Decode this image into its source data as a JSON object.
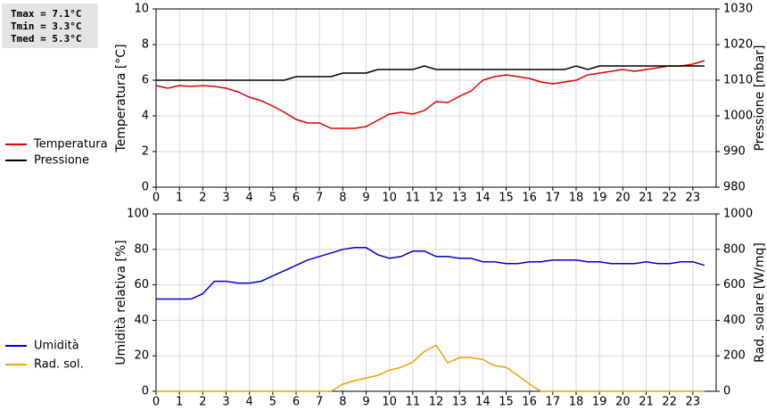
{
  "stats": [
    "Tmax =  7.1°C",
    "Tmin =  3.3°C",
    "Tmed =  5.3°C"
  ],
  "chart_data": [
    {
      "type": "line",
      "ylabel": "Temperatura [°C]",
      "y2label": "Pressione [mbar]",
      "grid": true,
      "x": [
        0,
        0.5,
        1,
        1.5,
        2,
        2.5,
        3,
        3.5,
        4,
        4.5,
        5,
        5.5,
        6,
        6.5,
        7,
        7.5,
        8,
        8.5,
        9,
        9.5,
        10,
        10.5,
        11,
        11.5,
        12,
        12.5,
        13,
        13.5,
        14,
        14.5,
        15,
        15.5,
        16,
        16.5,
        17,
        17.5,
        18,
        18.5,
        19,
        19.5,
        20,
        20.5,
        21,
        21.5,
        22,
        22.5,
        23,
        23.5
      ],
      "xlim": [
        0,
        24
      ],
      "xticks": [
        0,
        1,
        2,
        3,
        4,
        5,
        6,
        7,
        8,
        9,
        10,
        11,
        12,
        13,
        14,
        15,
        16,
        17,
        18,
        19,
        20,
        21,
        22,
        23
      ],
      "ylim": [
        0,
        10
      ],
      "yticks": [
        0,
        2,
        4,
        6,
        8,
        10
      ],
      "y2lim": [
        980,
        1030
      ],
      "y2ticks": [
        980,
        990,
        1000,
        1010,
        1020,
        1030
      ],
      "series": [
        {
          "name": "Temperatura",
          "color": "#dd0000",
          "values": [
            5.7,
            5.55,
            5.7,
            5.65,
            5.7,
            5.65,
            5.55,
            5.35,
            5.05,
            4.85,
            4.55,
            4.2,
            3.8,
            3.6,
            3.6,
            3.3,
            3.3,
            3.3,
            3.4,
            3.75,
            4.1,
            4.2,
            4.1,
            4.3,
            4.8,
            4.75,
            5.1,
            5.4,
            6.0,
            6.2,
            6.3,
            6.2,
            6.1,
            5.9,
            5.8,
            5.9,
            6.0,
            6.3,
            6.4,
            6.5,
            6.6,
            6.5,
            6.6,
            6.7,
            6.8,
            6.8,
            6.9,
            7.1
          ]
        },
        {
          "name": "Pressione",
          "color": "#000000",
          "axis": "y2",
          "values": [
            1010,
            1010,
            1010,
            1010,
            1010,
            1010,
            1010,
            1010,
            1010,
            1010,
            1010,
            1010,
            1011,
            1011,
            1011,
            1011,
            1012,
            1012,
            1012,
            1013,
            1013,
            1013,
            1013,
            1014,
            1013,
            1013,
            1013,
            1013,
            1013,
            1013,
            1013,
            1013,
            1013,
            1013,
            1013,
            1013,
            1014,
            1013,
            1014,
            1014,
            1014,
            1014,
            1014,
            1014,
            1014,
            1014,
            1014,
            1014
          ]
        }
      ]
    },
    {
      "type": "line",
      "ylabel": "Umidità relativa [%]",
      "y2label": "Rad. solare [W/mq]",
      "grid": true,
      "x": [
        0,
        0.5,
        1,
        1.5,
        2,
        2.5,
        3,
        3.5,
        4,
        4.5,
        5,
        5.5,
        6,
        6.5,
        7,
        7.5,
        8,
        8.5,
        9,
        9.5,
        10,
        10.5,
        11,
        11.5,
        12,
        12.5,
        13,
        13.5,
        14,
        14.5,
        15,
        15.5,
        16,
        16.5,
        17,
        17.5,
        18,
        18.5,
        19,
        19.5,
        20,
        20.5,
        21,
        21.5,
        22,
        22.5,
        23,
        23.5
      ],
      "xlim": [
        0,
        24
      ],
      "xticks": [
        0,
        1,
        2,
        3,
        4,
        5,
        6,
        7,
        8,
        9,
        10,
        11,
        12,
        13,
        14,
        15,
        16,
        17,
        18,
        19,
        20,
        21,
        22,
        23
      ],
      "ylim": [
        0,
        100
      ],
      "yticks": [
        0,
        20,
        40,
        60,
        80,
        100
      ],
      "y2lim": [
        0,
        1000
      ],
      "y2ticks": [
        0,
        200,
        400,
        600,
        800,
        1000
      ],
      "series": [
        {
          "name": "Umidità",
          "color": "#0000cc",
          "values": [
            52,
            52,
            52,
            52,
            55,
            62,
            62,
            61,
            61,
            62,
            65,
            68,
            71,
            74,
            76,
            78,
            80,
            81,
            81,
            77,
            75,
            76,
            79,
            79,
            76,
            76,
            75,
            75,
            73,
            73,
            72,
            72,
            73,
            73,
            74,
            74,
            74,
            73,
            73,
            72,
            72,
            72,
            73,
            72,
            72,
            73,
            73,
            71
          ]
        },
        {
          "name": "Rad. sol.",
          "color": "#f0a000",
          "axis": "y2",
          "values": [
            0,
            0,
            0,
            0,
            0,
            0,
            0,
            0,
            0,
            0,
            0,
            0,
            0,
            0,
            0,
            0,
            40,
            60,
            75,
            90,
            120,
            135,
            165,
            225,
            260,
            160,
            190,
            190,
            180,
            145,
            135,
            90,
            40,
            0,
            0,
            0,
            0,
            0,
            0,
            0,
            0,
            0,
            0,
            0,
            0,
            0,
            0,
            0
          ]
        }
      ]
    }
  ]
}
